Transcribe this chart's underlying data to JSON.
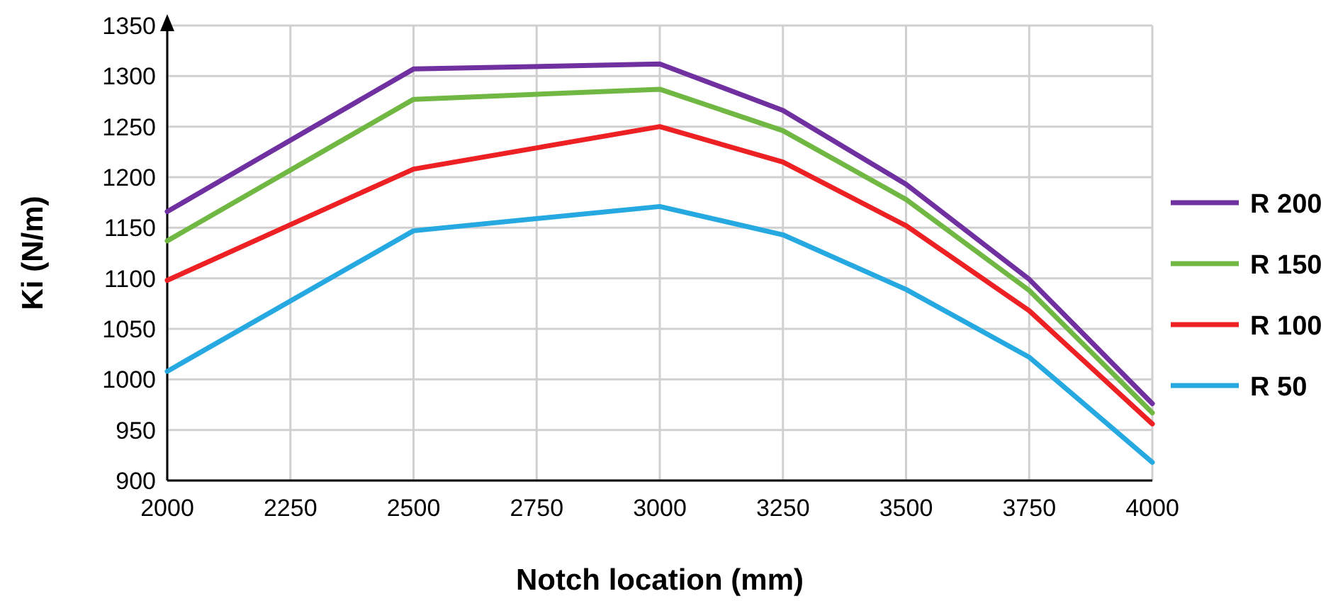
{
  "chart_data": {
    "type": "line",
    "xlabel": "Notch location (mm)",
    "ylabel": "Ki  (N/m)",
    "x": [
      2000,
      2500,
      3000,
      3250,
      3500,
      3750,
      4000
    ],
    "series": [
      {
        "name": "R 200",
        "color": "#7030a0",
        "values": [
          1166,
          1307,
          1312,
          1266,
          1193,
          1099,
          976
        ]
      },
      {
        "name": "R 150",
        "color": "#70b843",
        "values": [
          1137,
          1277,
          1287,
          1246,
          1178,
          1088,
          967
        ]
      },
      {
        "name": "R 100",
        "color": "#ed2024",
        "values": [
          1098,
          1208,
          1250,
          1215,
          1152,
          1068,
          956
        ]
      },
      {
        "name": "R 50",
        "color": "#26a9e0",
        "values": [
          1008,
          1147,
          1171,
          1143,
          1089,
          1022,
          918
        ]
      }
    ],
    "xlim": [
      2000,
      4000
    ],
    "xticks": [
      2000,
      2250,
      2500,
      2750,
      3000,
      3250,
      3500,
      3750,
      4000
    ],
    "ylim": [
      900,
      1350
    ],
    "yticks": [
      900,
      950,
      1000,
      1050,
      1100,
      1150,
      1200,
      1250,
      1300,
      1350
    ],
    "grid": true,
    "legend": "right",
    "marker": "none",
    "line_style": "solid"
  }
}
